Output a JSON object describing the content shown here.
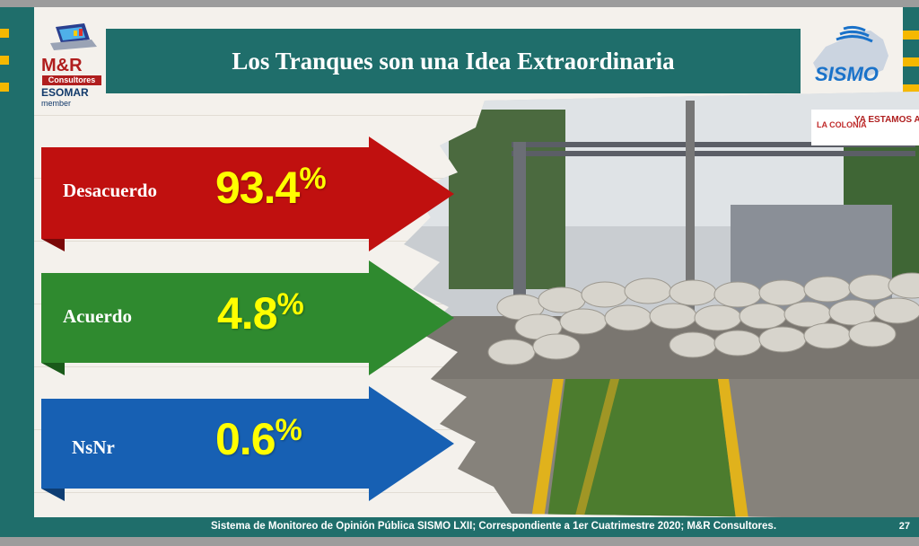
{
  "header": {
    "title": "Los Tranques son una Idea Extraordinaria",
    "logo_left": {
      "brand": "M&R",
      "line2": "Consultores",
      "line3": "ESOMAR",
      "line4": "member"
    },
    "logo_right": {
      "brand": "SISMO"
    }
  },
  "photo": {
    "banner_brand": "LA COLONIA",
    "banner_text": "YA ESTAMOS ABIERTOS"
  },
  "chart_data": {
    "type": "bar",
    "title": "Los Tranques son una Idea Extraordinaria",
    "categories": [
      "Desacuerdo",
      "Acuerdo",
      "NsNr"
    ],
    "values": [
      93.4,
      4.8,
      0.6
    ],
    "value_labels": [
      "93.4",
      "4.8",
      "0.6"
    ],
    "unit": "%",
    "colors": [
      "#c0100f",
      "#2f8a2f",
      "#1760b3"
    ]
  },
  "footer": {
    "source": "Sistema de Monitoreo de Opinión Pública SISMO LXII; Correspondiente a 1er Cuatrimestre 2020; M&R Consultores.",
    "page": "27"
  }
}
